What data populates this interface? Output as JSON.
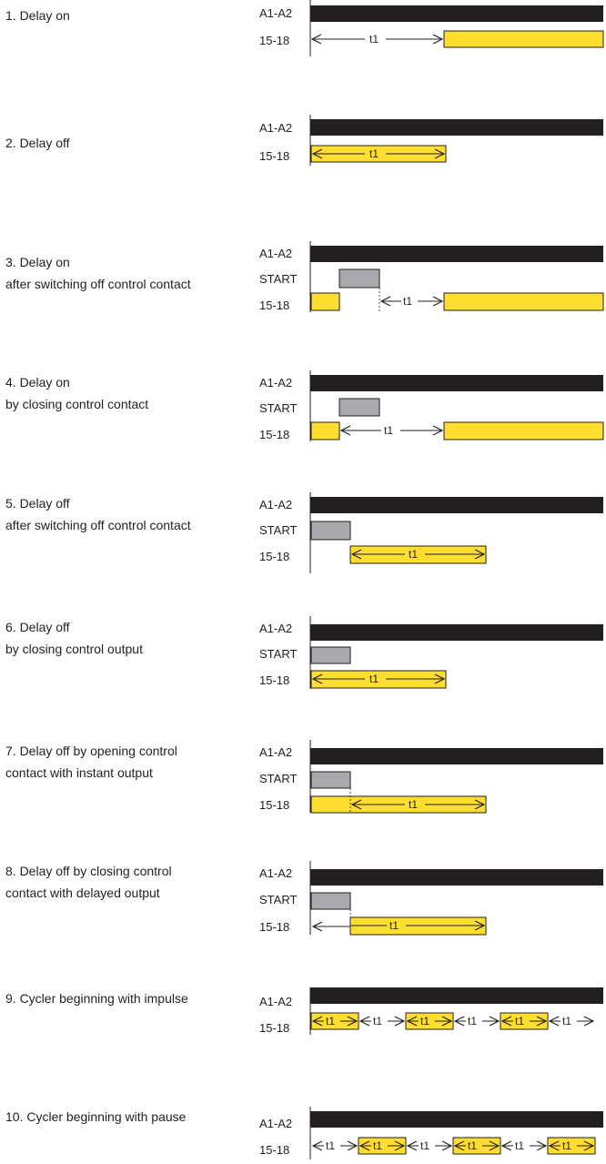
{
  "colors": {
    "active": "#231f20",
    "contact": "#ffde2f",
    "control": "#a7a9ac",
    "stroke": "#231f20"
  },
  "time_label": "t1",
  "signals": {
    "supply": "A1-A2",
    "start": "START",
    "output": "15-18"
  },
  "functions": [
    {
      "title_lines": [
        "1. Delay on"
      ],
      "has_start": false
    },
    {
      "title_lines": [
        "2. Delay off"
      ],
      "has_start": false
    },
    {
      "title_lines": [
        "3. Delay on",
        "after switching off control contact"
      ],
      "has_start": true
    },
    {
      "title_lines": [
        "4. Delay on",
        "by closing control contact"
      ],
      "has_start": true
    },
    {
      "title_lines": [
        "5. Delay off",
        "after switching off control contact"
      ],
      "has_start": true
    },
    {
      "title_lines": [
        "6. Delay off",
        "by closing control output"
      ],
      "has_start": true
    },
    {
      "title_lines": [
        "7. Delay off by opening control",
        "contact with instant output"
      ],
      "has_start": true
    },
    {
      "title_lines": [
        "8. Delay off by closing control",
        "contact with delayed output"
      ],
      "has_start": true
    },
    {
      "title_lines": [
        "9. Cycler beginning with impulse"
      ],
      "has_start": false
    },
    {
      "title_lines": [
        "10. Cycler beginning with pause"
      ],
      "has_start": false
    }
  ]
}
